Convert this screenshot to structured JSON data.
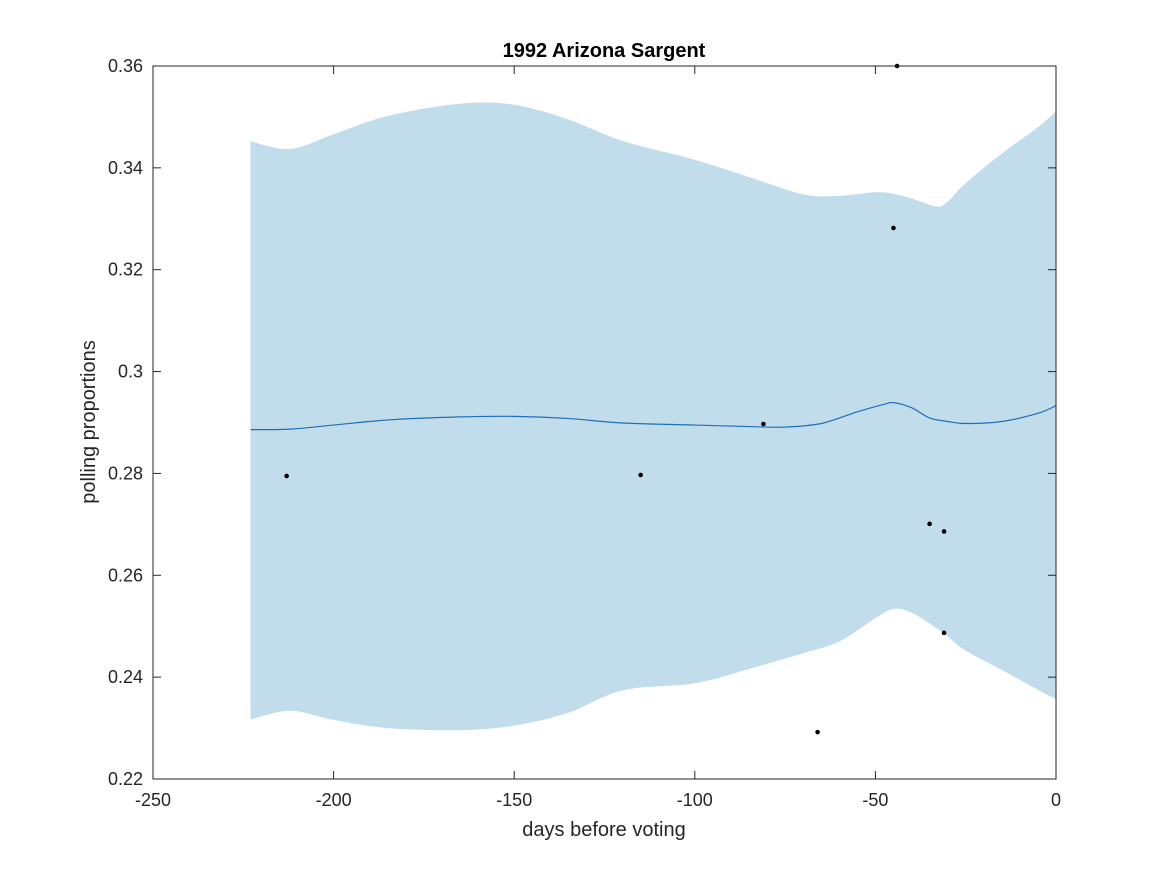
{
  "chart_data": {
    "type": "line",
    "title": "1992 Arizona Sargent",
    "xlabel": "days before voting",
    "ylabel": "polling proportions",
    "xlim": [
      -250,
      0
    ],
    "ylim": [
      0.22,
      0.36
    ],
    "x_ticks": [
      -250,
      -200,
      -150,
      -100,
      -50,
      0
    ],
    "x_tick_labels": [
      "-250",
      "-200",
      "-150",
      "-100",
      "-50",
      "0"
    ],
    "y_ticks": [
      0.22,
      0.24,
      0.26,
      0.28,
      0.3,
      0.32,
      0.34,
      0.36
    ],
    "y_tick_labels": [
      "0.22",
      "0.24",
      "0.26",
      "0.28",
      "0.3",
      "0.32",
      "0.34",
      "0.36"
    ],
    "grid": false,
    "colors": {
      "band": "#c1dceb",
      "line": "#1f6fb8",
      "points": "#000000",
      "axes": "#262626"
    },
    "series": [
      {
        "kind": "band",
        "x": [
          -223,
          -212,
          -200,
          -185,
          -165,
          -150,
          -135,
          -120,
          -100,
          -85,
          -70,
          -60,
          -50,
          -45,
          -40,
          -33,
          -30,
          -25,
          -15,
          -5,
          0
        ],
        "upper": [
          0.3452,
          0.3437,
          0.3466,
          0.3502,
          0.3526,
          0.3524,
          0.3495,
          0.3453,
          0.3416,
          0.3382,
          0.3348,
          0.3345,
          0.3352,
          0.3349,
          0.334,
          0.3324,
          0.3334,
          0.337,
          0.3428,
          0.348,
          0.3511
        ],
        "lower": [
          0.2317,
          0.2334,
          0.2316,
          0.23,
          0.2296,
          0.2305,
          0.233,
          0.2374,
          0.2388,
          0.2416,
          0.2447,
          0.247,
          0.2516,
          0.2534,
          0.2527,
          0.2496,
          0.248,
          0.2452,
          0.2414,
          0.2375,
          0.2357
        ]
      },
      {
        "kind": "line",
        "x": [
          -223,
          -212,
          -200,
          -185,
          -165,
          -150,
          -135,
          -120,
          -100,
          -85,
          -75,
          -65,
          -55,
          -48,
          -45,
          -40,
          -35,
          -30,
          -25,
          -15,
          -5,
          0
        ],
        "y": [
          0.2886,
          0.2887,
          0.2895,
          0.2905,
          0.2911,
          0.2912,
          0.2908,
          0.2899,
          0.2895,
          0.2892,
          0.2891,
          0.2898,
          0.2921,
          0.2935,
          0.2939,
          0.2929,
          0.2909,
          0.2902,
          0.2898,
          0.2902,
          0.2918,
          0.2933
        ]
      },
      {
        "kind": "scatter",
        "points": [
          [
            -213,
            0.2795
          ],
          [
            -115,
            0.2797
          ],
          [
            -81,
            0.2897
          ],
          [
            -66,
            0.2292
          ],
          [
            -45,
            0.3282
          ],
          [
            -44,
            0.36
          ],
          [
            -35,
            0.2701
          ],
          [
            -31,
            0.2686
          ],
          [
            -31,
            0.2487
          ]
        ]
      }
    ]
  }
}
